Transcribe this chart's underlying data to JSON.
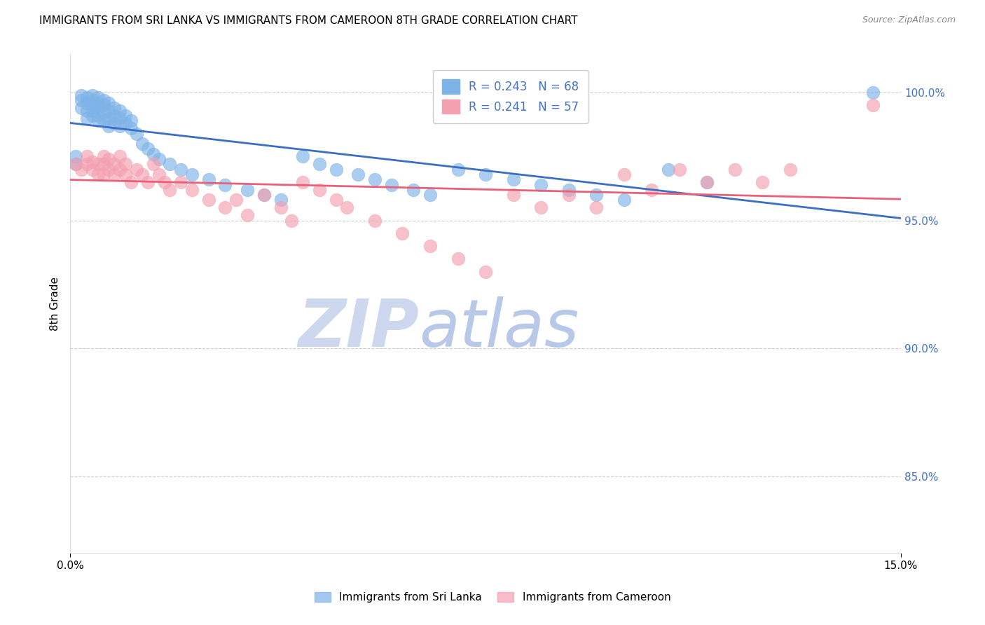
{
  "title": "IMMIGRANTS FROM SRI LANKA VS IMMIGRANTS FROM CAMEROON 8TH GRADE CORRELATION CHART",
  "source": "Source: ZipAtlas.com",
  "ylabel": "8th Grade",
  "ylabel_ticks": [
    "100.0%",
    "95.0%",
    "90.0%",
    "85.0%"
  ],
  "ylabel_tick_values": [
    1.0,
    0.95,
    0.9,
    0.85
  ],
  "xmin": 0.0,
  "xmax": 0.15,
  "ymin": 0.82,
  "ymax": 1.015,
  "legend1_r": "0.243",
  "legend1_n": "68",
  "legend2_r": "0.241",
  "legend2_n": "57",
  "blue_color": "#7EB3E8",
  "pink_color": "#F4A0B0",
  "blue_line_color": "#3A6FC4",
  "pink_line_color": "#E8607A",
  "sri_lanka_x": [
    0.001,
    0.001,
    0.002,
    0.002,
    0.002,
    0.003,
    0.003,
    0.003,
    0.003,
    0.004,
    0.004,
    0.004,
    0.004,
    0.004,
    0.005,
    0.005,
    0.005,
    0.005,
    0.005,
    0.006,
    0.006,
    0.006,
    0.006,
    0.007,
    0.007,
    0.007,
    0.007,
    0.008,
    0.008,
    0.008,
    0.009,
    0.009,
    0.009,
    0.01,
    0.01,
    0.011,
    0.011,
    0.012,
    0.013,
    0.014,
    0.015,
    0.016,
    0.018,
    0.02,
    0.022,
    0.025,
    0.028,
    0.032,
    0.035,
    0.038,
    0.042,
    0.045,
    0.048,
    0.052,
    0.055,
    0.058,
    0.062,
    0.065,
    0.07,
    0.075,
    0.08,
    0.085,
    0.09,
    0.095,
    0.1,
    0.108,
    0.115,
    0.145
  ],
  "sri_lanka_y": [
    0.975,
    0.972,
    0.999,
    0.997,
    0.994,
    0.998,
    0.996,
    0.993,
    0.99,
    0.999,
    0.997,
    0.995,
    0.993,
    0.991,
    0.998,
    0.996,
    0.994,
    0.991,
    0.989,
    0.997,
    0.995,
    0.992,
    0.989,
    0.996,
    0.993,
    0.99,
    0.987,
    0.994,
    0.991,
    0.988,
    0.993,
    0.99,
    0.987,
    0.991,
    0.988,
    0.989,
    0.986,
    0.984,
    0.98,
    0.978,
    0.976,
    0.974,
    0.972,
    0.97,
    0.968,
    0.966,
    0.964,
    0.962,
    0.96,
    0.958,
    0.975,
    0.972,
    0.97,
    0.968,
    0.966,
    0.964,
    0.962,
    0.96,
    0.97,
    0.968,
    0.966,
    0.964,
    0.962,
    0.96,
    0.958,
    0.97,
    0.965,
    1.0
  ],
  "cameroon_x": [
    0.001,
    0.002,
    0.003,
    0.003,
    0.004,
    0.004,
    0.005,
    0.005,
    0.006,
    0.006,
    0.006,
    0.007,
    0.007,
    0.008,
    0.008,
    0.009,
    0.009,
    0.01,
    0.01,
    0.011,
    0.012,
    0.013,
    0.014,
    0.015,
    0.016,
    0.017,
    0.018,
    0.02,
    0.022,
    0.025,
    0.028,
    0.03,
    0.032,
    0.035,
    0.038,
    0.04,
    0.042,
    0.045,
    0.048,
    0.05,
    0.055,
    0.06,
    0.065,
    0.07,
    0.075,
    0.08,
    0.085,
    0.09,
    0.095,
    0.1,
    0.105,
    0.11,
    0.115,
    0.12,
    0.125,
    0.13,
    0.145
  ],
  "cameroon_y": [
    0.972,
    0.97,
    0.975,
    0.972,
    0.973,
    0.97,
    0.972,
    0.968,
    0.975,
    0.972,
    0.968,
    0.974,
    0.97,
    0.972,
    0.968,
    0.975,
    0.97,
    0.972,
    0.968,
    0.965,
    0.97,
    0.968,
    0.965,
    0.972,
    0.968,
    0.965,
    0.962,
    0.965,
    0.962,
    0.958,
    0.955,
    0.958,
    0.952,
    0.96,
    0.955,
    0.95,
    0.965,
    0.962,
    0.958,
    0.955,
    0.95,
    0.945,
    0.94,
    0.935,
    0.93,
    0.96,
    0.955,
    0.96,
    0.955,
    0.968,
    0.962,
    0.97,
    0.965,
    0.97,
    0.965,
    0.97,
    0.995
  ],
  "watermark_zip": "ZIP",
  "watermark_atlas": "atlas",
  "background_color": "#ffffff",
  "grid_color": "#cccccc",
  "right_tick_color": "#4472C4",
  "legend_text_color": "#4472C4"
}
